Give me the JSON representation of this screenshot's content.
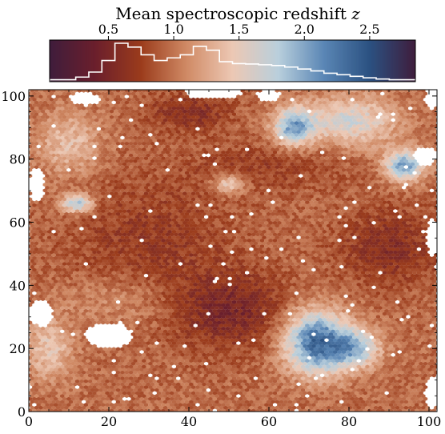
{
  "chart_data": {
    "type": "heatmap",
    "title": "",
    "xlabel": "",
    "ylabel": "",
    "xlim": [
      0,
      102
    ],
    "ylim": [
      0,
      102
    ],
    "x_ticks": [
      0,
      20,
      40,
      60,
      80,
      100
    ],
    "y_ticks": [
      0,
      20,
      40,
      60,
      80,
      100
    ],
    "grid": false,
    "mark": "hexbin",
    "colorbar": {
      "label_prefix": "Mean spectroscopic redshift ",
      "label_var": "z",
      "range": [
        0.05,
        2.85
      ],
      "ticks": [
        0.5,
        1.0,
        1.5,
        2.0,
        2.5
      ],
      "tick_labels": [
        "0.5",
        "1.0",
        "1.5",
        "2.0",
        "2.5"
      ],
      "placement": "top",
      "colormap_stops": [
        "#3f1d3c",
        "#6b1f2c",
        "#9b3c1c",
        "#d08a65",
        "#ecc8b4",
        "#b9cfdc",
        "#5a86b5",
        "#2b5181",
        "#3f1d3c"
      ],
      "histogram_bins": [
        0.05,
        0.25,
        0.35,
        0.45,
        0.55,
        0.65,
        0.75,
        0.85,
        0.95,
        1.05,
        1.15,
        1.25,
        1.35,
        1.45,
        1.55,
        1.65,
        1.75,
        1.85,
        1.95,
        2.05,
        2.15,
        2.25,
        2.35,
        2.45,
        2.55,
        2.65,
        2.85
      ],
      "histogram_counts": [
        0.05,
        0.12,
        0.25,
        0.55,
        1.0,
        0.9,
        0.7,
        0.55,
        0.62,
        0.7,
        0.92,
        0.82,
        0.52,
        0.47,
        0.46,
        0.44,
        0.42,
        0.38,
        0.33,
        0.28,
        0.22,
        0.18,
        0.14,
        0.1,
        0.07,
        0.05,
        0.04
      ],
      "histogram_color": "#ffffff"
    },
    "field_features": [
      {
        "cx": 50,
        "cy": 32,
        "sx": 14,
        "sy": 12,
        "dz": -0.45
      },
      {
        "cx": 30,
        "cy": 55,
        "sx": 20,
        "sy": 18,
        "dz": -0.25
      },
      {
        "cx": 40,
        "cy": 95,
        "sx": 10,
        "sy": 6,
        "dz": -0.35
      },
      {
        "cx": 90,
        "cy": 52,
        "sx": 12,
        "sy": 12,
        "dz": -0.35
      },
      {
        "cx": 72,
        "cy": 22,
        "sx": 8,
        "sy": 10,
        "dz": 1.4
      },
      {
        "cx": 82,
        "cy": 20,
        "sx": 6,
        "sy": 6,
        "dz": 0.8
      },
      {
        "cx": 80,
        "cy": 92,
        "sx": 12,
        "sy": 8,
        "dz": 0.7
      },
      {
        "cx": 94,
        "cy": 78,
        "sx": 5,
        "sy": 5,
        "dz": 1.1
      },
      {
        "cx": 66,
        "cy": 90,
        "sx": 5,
        "sy": 6,
        "dz": 1.0
      },
      {
        "cx": 12,
        "cy": 66,
        "sx": 4,
        "sy": 3,
        "dz": 0.9
      },
      {
        "cx": 50,
        "cy": 72,
        "sx": 4,
        "sy": 3,
        "dz": 0.6
      },
      {
        "cx": 10,
        "cy": 85,
        "sx": 8,
        "sy": 10,
        "dz": 0.45
      },
      {
        "cx": 5,
        "cy": 20,
        "sx": 6,
        "sy": 10,
        "dz": 0.5
      },
      {
        "cx": 60,
        "cy": 78,
        "sx": 20,
        "sy": 8,
        "dz": -0.2
      },
      {
        "cx": 22,
        "cy": 35,
        "sx": 14,
        "sy": 8,
        "dz": 0.2
      }
    ],
    "gaps": [
      {
        "cx": 20,
        "cy": 24,
        "rx": 6,
        "ry": 4
      },
      {
        "cx": 3,
        "cy": 31,
        "rx": 3,
        "ry": 4
      },
      {
        "cx": 14,
        "cy": 99,
        "rx": 4,
        "ry": 2
      },
      {
        "cx": 46,
        "cy": 101,
        "rx": 7,
        "ry": 2
      },
      {
        "cx": 99,
        "cy": 81,
        "rx": 3,
        "ry": 3
      },
      {
        "cx": 101,
        "cy": 55,
        "rx": 1.5,
        "ry": 6
      },
      {
        "cx": 101,
        "cy": 6,
        "rx": 2,
        "ry": 5
      },
      {
        "cx": 2,
        "cy": 72,
        "rx": 2,
        "ry": 5
      },
      {
        "cx": 101,
        "cy": 99,
        "rx": 2,
        "ry": 3
      },
      {
        "cx": 60,
        "cy": 100,
        "rx": 3,
        "ry": 2
      }
    ]
  }
}
